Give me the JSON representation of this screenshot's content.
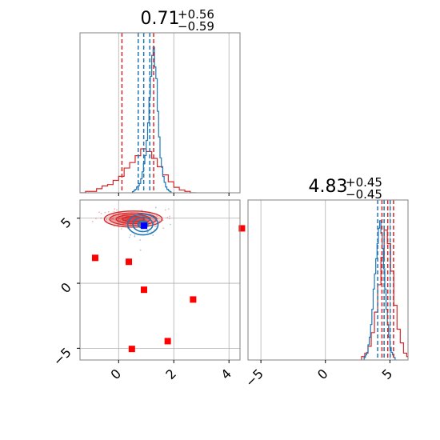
{
  "colors": {
    "blue": "#1f77b4",
    "red": "#d62728",
    "marker_red": "#ff0000",
    "marker_blue": "#0000ff",
    "grid": "#b0b0b0",
    "frame": "#808080"
  },
  "chart_data": {
    "type": "corner",
    "grid": true,
    "params": [
      {
        "name": "",
        "title": {
          "median": "0.71",
          "plus": "+0.56",
          "minus": "−0.59"
        },
        "range": [
          -1.4,
          4.4
        ],
        "ticks": [
          0,
          2,
          4
        ],
        "tick_labels": [
          "0",
          "2",
          "4"
        ],
        "quantiles": {
          "red": [
            0.12,
            0.71,
            1.27
          ],
          "blue": [
            0.71,
            0.91,
            1.13
          ]
        }
      },
      {
        "name": "",
        "title": {
          "median": "4.83",
          "plus": "+0.45",
          "minus": "−0.45"
        },
        "range": [
          -6.0,
          6.4
        ],
        "ticks": [
          -5,
          0,
          5
        ],
        "tick_labels": [
          "−5",
          "0",
          "5"
        ],
        "quantiles": {
          "red": [
            4.38,
            4.83,
            5.28
          ],
          "blue": [
            4.05,
            4.55,
            5.02
          ]
        }
      }
    ],
    "scatter_y_range": [
      -5.9,
      6.4
    ],
    "scatter_y_ticks": [
      -5,
      0,
      5
    ],
    "scatter_y_tick_labels": [
      "−5",
      "0",
      "5"
    ],
    "hist1": {
      "bin_edges": [
        -1.4,
        -1.2,
        -1.0,
        -0.8,
        -0.6,
        -0.4,
        -0.2,
        0.0,
        0.2,
        0.4,
        0.6,
        0.8,
        1.0,
        1.2,
        1.4,
        1.6,
        1.8,
        2.0,
        2.2,
        2.4,
        2.6,
        2.8
      ],
      "red": [
        0,
        1,
        1,
        3,
        5,
        6,
        9,
        12,
        18,
        22,
        27,
        32,
        30,
        25,
        19,
        13,
        8,
        4,
        2,
        1,
        0
      ],
      "blue": [
        0,
        0,
        0,
        0,
        0,
        0,
        0,
        0,
        1,
        4,
        15,
        40,
        120,
        25,
        5,
        1,
        0,
        0,
        0,
        0,
        0
      ],
      "blue_fine": {
        "x_start": 0.5,
        "bin_width": 0.05,
        "counts": [
          1,
          2,
          3,
          5,
          6,
          8,
          12,
          18,
          25,
          32,
          45,
          60,
          82,
          100,
          118,
          125,
          108,
          98,
          70,
          48,
          30,
          22,
          14,
          9,
          5,
          3,
          2,
          1
        ]
      },
      "red_max": 32,
      "blue_max": 125
    },
    "hist2": {
      "red": {
        "x_start": 2.8,
        "bin_width": 0.25,
        "counts": [
          1,
          2,
          4,
          8,
          14,
          22,
          30,
          38,
          34,
          26,
          16,
          9,
          5,
          2,
          1,
          0
        ]
      },
      "blue": {
        "x_start": 3.0,
        "bin_width": 0.1,
        "counts": [
          1,
          2,
          3,
          6,
          9,
          14,
          20,
          28,
          34,
          40,
          46,
          52,
          55,
          50,
          44,
          36,
          28,
          20,
          14,
          9,
          5,
          3,
          2,
          1,
          0
        ]
      },
      "max": 60
    },
    "red_contours": {
      "center": [
        0.53,
        4.93
      ],
      "radii": [
        [
          1.05,
          0.62
        ],
        [
          0.85,
          0.48
        ],
        [
          0.62,
          0.34
        ],
        [
          0.4,
          0.2
        ]
      ]
    },
    "blue_contours": {
      "center": [
        0.88,
        4.52
      ],
      "radii": [
        [
          0.55,
          0.8
        ],
        [
          0.36,
          0.55
        ],
        [
          0.18,
          0.28
        ]
      ]
    },
    "red_markers": [
      [
        -0.85,
        1.95
      ],
      [
        0.37,
        1.65
      ],
      [
        0.92,
        -0.5
      ],
      [
        2.7,
        -1.25
      ],
      [
        1.78,
        -4.45
      ],
      [
        0.48,
        -5.05
      ],
      [
        4.47,
        4.22
      ]
    ],
    "blue_marker": [
      0.92,
      4.42
    ]
  }
}
